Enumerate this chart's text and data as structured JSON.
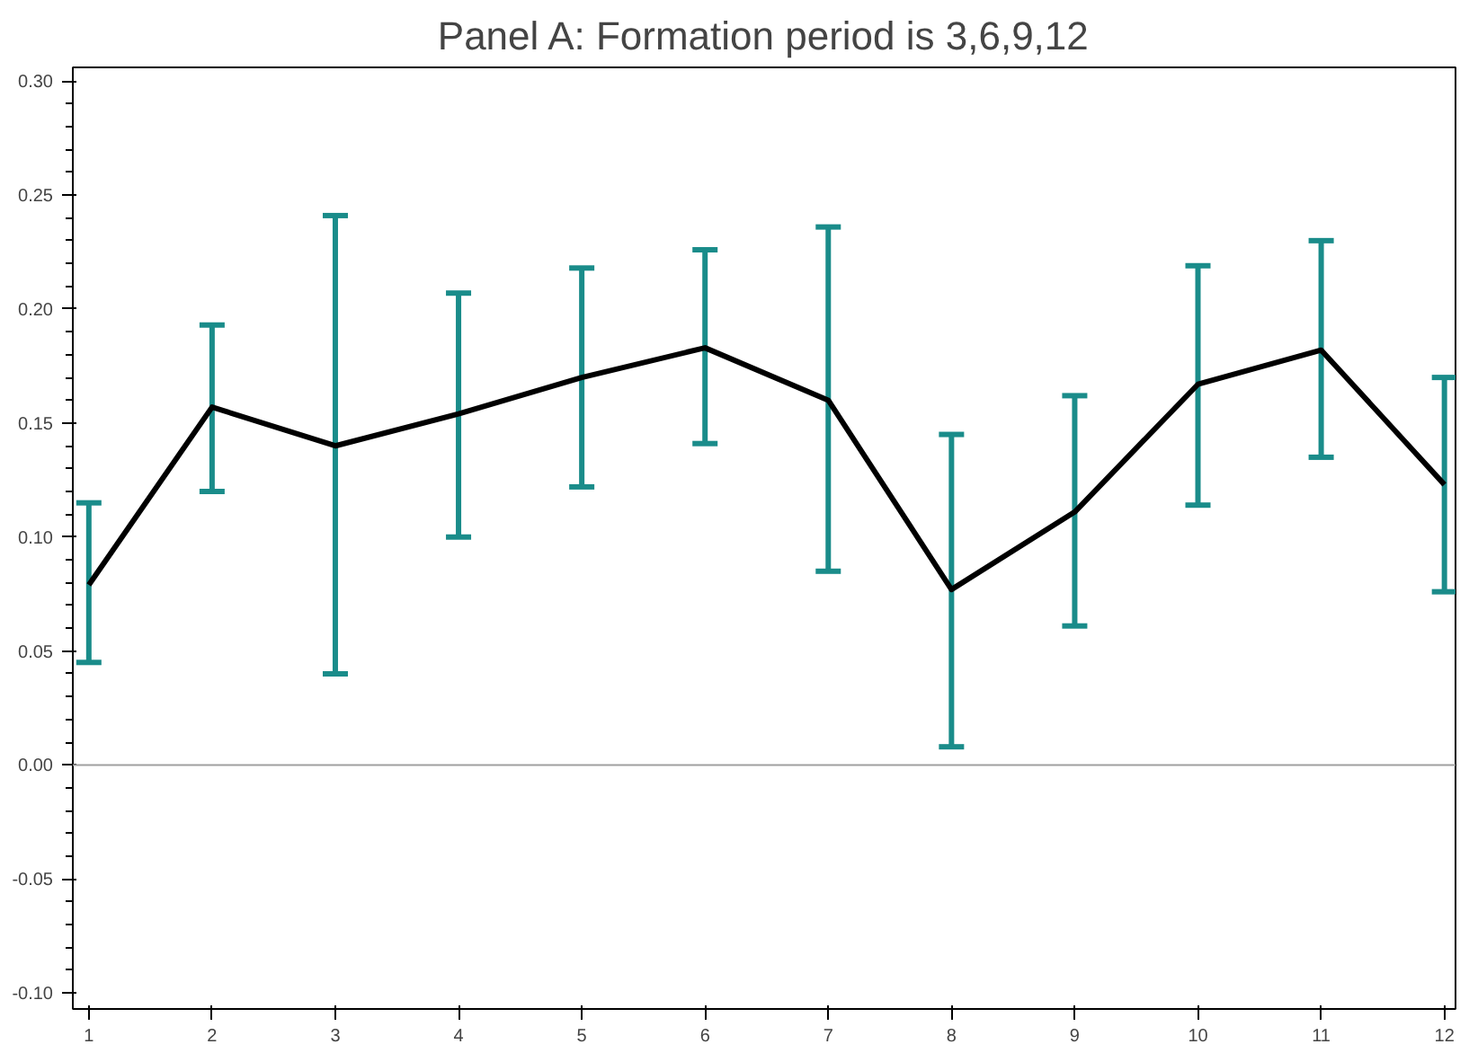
{
  "chart_data": {
    "type": "line",
    "title": "Panel A: Formation period is 3,6,9,12",
    "x": [
      1,
      2,
      3,
      4,
      5,
      6,
      7,
      8,
      9,
      10,
      11,
      12
    ],
    "series": [
      {
        "color": "#000000",
        "values": [
          0.079,
          0.157,
          0.14,
          0.154,
          0.17,
          0.183,
          0.16,
          0.077,
          0.111,
          0.167,
          0.182,
          0.123
        ],
        "errors": [
          [
            0.045,
            0.115
          ],
          [
            0.12,
            0.193
          ],
          [
            0.04,
            0.241
          ],
          [
            0.1,
            0.207
          ],
          [
            0.122,
            0.218
          ],
          [
            0.141,
            0.226
          ],
          [
            0.085,
            0.236
          ],
          [
            0.008,
            0.145
          ],
          [
            0.061,
            0.162
          ],
          [
            0.114,
            0.219
          ],
          [
            0.135,
            0.23
          ],
          [
            0.076,
            0.17
          ]
        ]
      }
    ],
    "xlim": [
      0.87,
      12.09
    ],
    "xticks": [
      1,
      2,
      3,
      4,
      5,
      6,
      7,
      8,
      9,
      10,
      11,
      12
    ],
    "ylim": [
      -0.107,
      0.306
    ],
    "yticks": [
      {
        "value": -0.1,
        "label": "-0.10"
      },
      {
        "value": -0.05,
        "label": "-0.05"
      },
      {
        "value": 0,
        "label": "0.00"
      },
      {
        "value": 0.05,
        "label": "0.05"
      },
      {
        "value": 0.1,
        "label": "0.10"
      },
      {
        "value": 0.15,
        "label": "0.15"
      },
      {
        "value": 0.2,
        "label": "0.20"
      },
      {
        "value": 0.25,
        "label": "0.25"
      },
      {
        "value": 0.3,
        "label": "0.30"
      }
    ],
    "ref_lines": [
      {
        "axis": "y",
        "value": 0,
        "color": "#a0a0a0"
      }
    ],
    "grid": false,
    "marker": "none",
    "line_style": "solid"
  }
}
